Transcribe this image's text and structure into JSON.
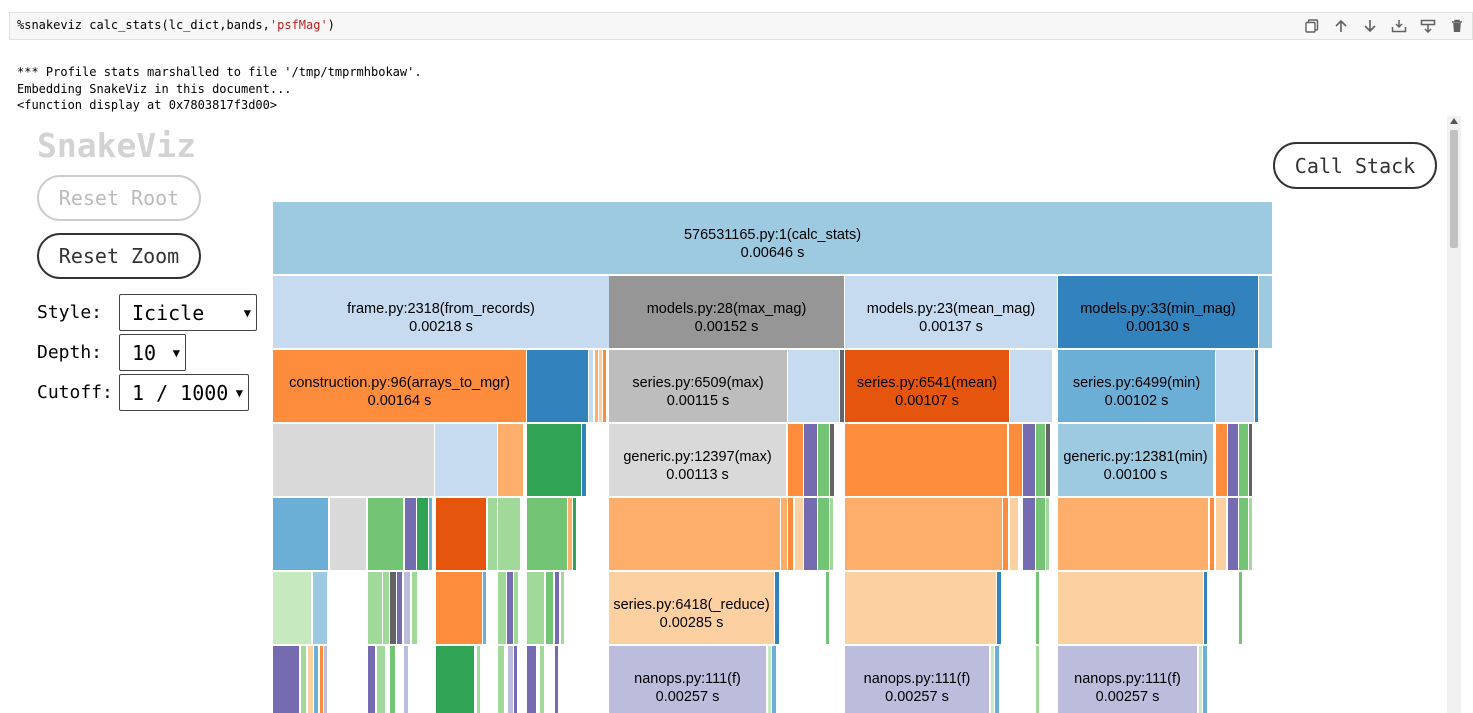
{
  "cell": {
    "code_prefix": "%snakeviz calc_stats(lc_dict,bands,",
    "code_string": "'psfMag'",
    "code_suffix": ")",
    "toolbar": [
      "duplicate-icon",
      "move-up-icon",
      "move-down-icon",
      "insert-above-icon",
      "insert-below-icon",
      "delete-icon"
    ]
  },
  "output": {
    "lines": [
      "*** Profile stats marshalled to file '/tmp/tmprmhbokaw'.",
      "Embedding SnakeViz in this document...",
      "<function display at 0x7803817f3d00>"
    ]
  },
  "snakeviz": {
    "title": "SnakeViz",
    "reset_root": "Reset Root",
    "reset_zoom": "Reset Zoom",
    "call_stack": "Call Stack",
    "style_label": "Style:",
    "style_value": "Icicle",
    "depth_label": "Depth:",
    "depth_value": "10",
    "cutoff_label": "Cutoff:",
    "cutoff_value": "1 / 1000"
  },
  "icicle": {
    "total_time_s": 0.00646,
    "labeled_nodes": [
      {
        "name": "576531165.py:1(calc_stats)",
        "time": "0.00646 s"
      },
      {
        "name": "frame.py:2318(from_records)",
        "time": "0.00218 s"
      },
      {
        "name": "models.py:28(max_mag)",
        "time": "0.00152 s"
      },
      {
        "name": "models.py:23(mean_mag)",
        "time": "0.00137 s"
      },
      {
        "name": "models.py:33(min_mag)",
        "time": "0.00130 s"
      },
      {
        "name": "construction.py:96(arrays_to_mgr)",
        "time": "0.00164 s"
      },
      {
        "name": "series.py:6509(max)",
        "time": "0.00115 s"
      },
      {
        "name": "series.py:6541(mean)",
        "time": "0.00107 s"
      },
      {
        "name": "series.py:6499(min)",
        "time": "0.00102 s"
      },
      {
        "name": "generic.py:12397(max)",
        "time": "0.00113 s"
      },
      {
        "name": "generic.py:12381(min)",
        "time": "0.00100 s"
      },
      {
        "name": "series.py:6418(_reduce)",
        "time": "0.00285 s"
      },
      {
        "name": "nanops.py:111(f)",
        "time": "0.00257 s"
      },
      {
        "name": "nanops.py:111(f)",
        "time": "0.00257 s"
      },
      {
        "name": "nanops.py:111(f)",
        "time": "0.00257 s"
      }
    ],
    "colors": {
      "steel": "#9ecae1",
      "pale_blue": "#c6dbef",
      "dark_gray": "#969696",
      "mid_blue": "#3182bd",
      "orange": "#fd8d3c",
      "light_gray": "#bdbdbd",
      "dark_orange": "#e6550d",
      "sky": "#6baed6",
      "very_light_gray": "#d9d9d9",
      "light_orange": "#fdae6b",
      "peach": "#fdd0a2",
      "lavender": "#bcbddc",
      "purple": "#756bb1",
      "green": "#31a354",
      "mid_green": "#74c476",
      "light_green": "#a1d99b",
      "pale_green": "#c7e9c0",
      "dim_gray": "#636363"
    }
  }
}
